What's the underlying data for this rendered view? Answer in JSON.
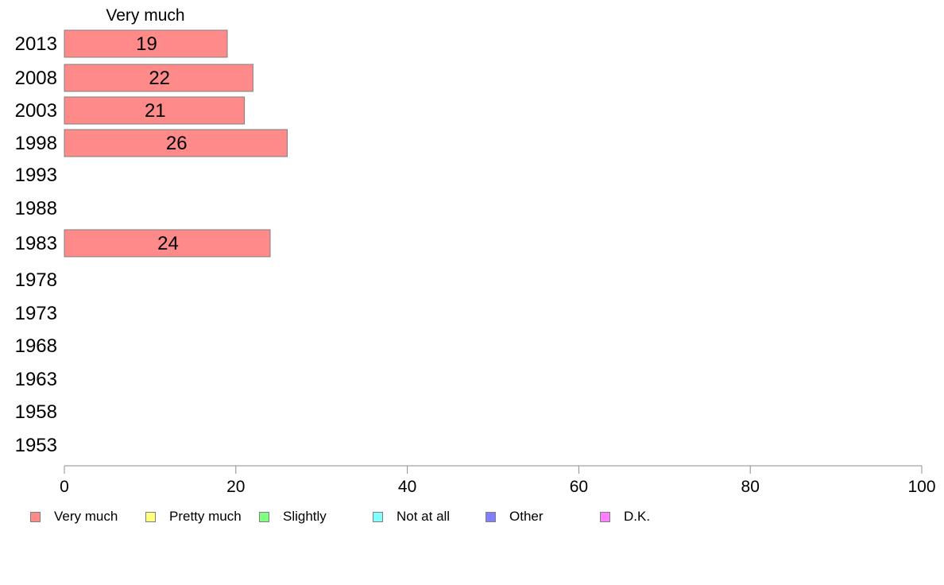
{
  "chart_data": {
    "type": "bar",
    "orientation": "horizontal",
    "stacked": true,
    "column_heading": "Very much",
    "categories": [
      "2013",
      "2008",
      "2003",
      "1998",
      "1993",
      "1988",
      "1983",
      "1978",
      "1973",
      "1968",
      "1963",
      "1958",
      "1953"
    ],
    "series": [
      {
        "name": "Very much",
        "color": "#ff8a8a",
        "values": [
          19,
          22,
          21,
          26,
          null,
          null,
          24,
          null,
          null,
          null,
          null,
          null,
          null
        ]
      },
      {
        "name": "Pretty much",
        "color": "#ffff80",
        "values": [
          null,
          null,
          null,
          null,
          null,
          null,
          null,
          null,
          null,
          null,
          null,
          null,
          null
        ]
      },
      {
        "name": "Slightly",
        "color": "#80ff80",
        "values": [
          null,
          null,
          null,
          null,
          null,
          null,
          null,
          null,
          null,
          null,
          null,
          null,
          null
        ]
      },
      {
        "name": "Not at all",
        "color": "#80ffff",
        "values": [
          null,
          null,
          null,
          null,
          null,
          null,
          null,
          null,
          null,
          null,
          null,
          null,
          null
        ]
      },
      {
        "name": "Other",
        "color": "#8080ff",
        "values": [
          null,
          null,
          null,
          null,
          null,
          null,
          null,
          null,
          null,
          null,
          null,
          null,
          null
        ]
      },
      {
        "name": "D.K.",
        "color": "#ff80ff",
        "values": [
          null,
          null,
          null,
          null,
          null,
          null,
          null,
          null,
          null,
          null,
          null,
          null,
          null
        ]
      }
    ],
    "data_labels": [
      "19",
      "22",
      "21",
      "26",
      "",
      "",
      "24",
      "",
      "",
      "",
      "",
      "",
      ""
    ],
    "xlim": [
      0,
      100
    ],
    "xticks": [
      "0",
      "20",
      "40",
      "60",
      "80",
      "100"
    ],
    "grid": false,
    "legend_position": "bottom"
  }
}
